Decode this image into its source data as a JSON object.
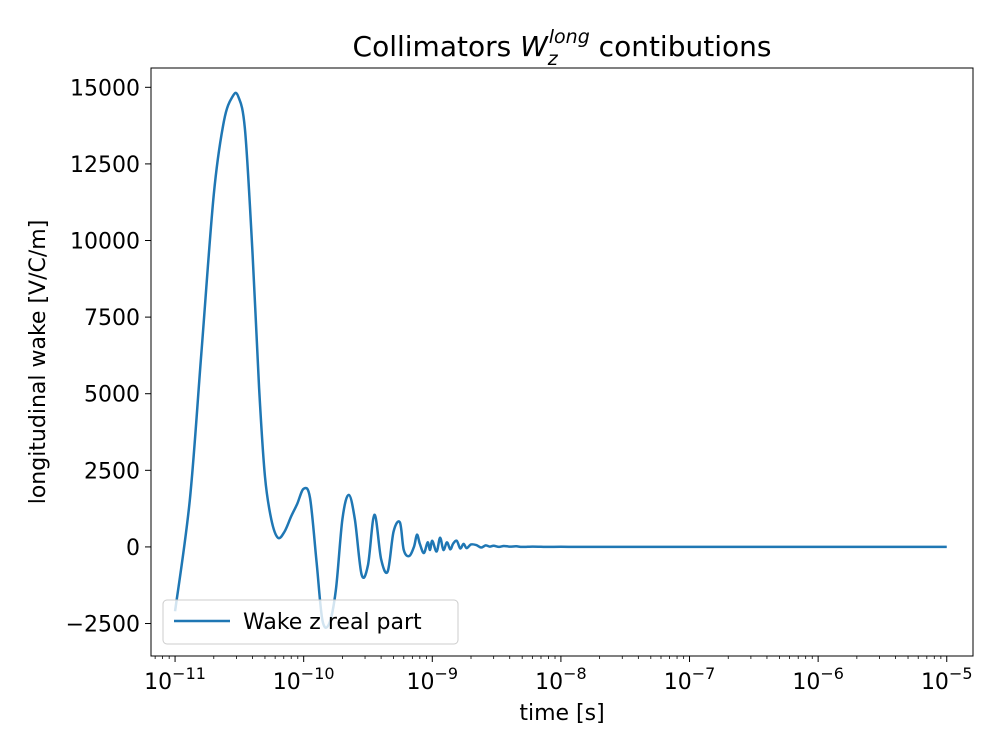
{
  "chart_data": {
    "type": "line",
    "title_main": "Collimators ",
    "title_symbol": "W",
    "title_sub": "z",
    "title_sup": "long",
    "title_rest": " contibutions",
    "xlabel": "time [s]",
    "ylabel": "longitudinal wake [V/C/m]",
    "x_scale": "log",
    "xlim": [
      6.5e-12,
      1.6e-05
    ],
    "ylim": [
      -3560,
      15630
    ],
    "grid": false,
    "legend_position": "lower-left",
    "x_tick_exponents": [
      "−11",
      "−10",
      "−9",
      "−8",
      "−7",
      "−6",
      "−5"
    ],
    "x_tick_values": [
      1e-11,
      1e-10,
      1e-09,
      1e-08,
      1e-07,
      1e-06,
      1e-05
    ],
    "y_ticks": [
      -2500,
      0,
      2500,
      5000,
      7500,
      10000,
      12500,
      15000
    ],
    "y_tick_labels": [
      "−2500",
      "0",
      "2500",
      "5000",
      "7500",
      "10000",
      "12500",
      "15000"
    ],
    "series": [
      {
        "name": "Wake z real part",
        "color": "#1f77b4",
        "x": [
          1e-11,
          1.3e-11,
          1.6e-11,
          2e-11,
          2.4e-11,
          2.8e-11,
          3.1e-11,
          3.5e-11,
          4e-11,
          4.5e-11,
          5e-11,
          5.6e-11,
          6.3e-11,
          7.1e-11,
          8e-11,
          8.9e-11,
          1e-10,
          1.12e-10,
          1.26e-10,
          1.4e-10,
          1.58e-10,
          1.78e-10,
          2e-10,
          2.24e-10,
          2.5e-10,
          2.82e-10,
          3.16e-10,
          3.55e-10,
          4e-10,
          4.5e-10,
          5e-10,
          5.6e-10,
          6e-10,
          6.6e-10,
          7.2e-10,
          7.6e-10,
          8e-10,
          8.6e-10,
          9.2e-10,
          9.6e-10,
          1e-09,
          1.08e-09,
          1.15e-09,
          1.22e-09,
          1.3e-09,
          1.38e-09,
          1.45e-09,
          1.55e-09,
          1.65e-09,
          1.75e-09,
          1.85e-09,
          2e-09,
          2.2e-09,
          2.4e-09,
          2.6e-09,
          2.8e-09,
          3e-09,
          3.3e-09,
          3.6e-09,
          4e-09,
          4.5e-09,
          5e-09,
          6e-09,
          7e-09,
          8e-09,
          1e-08,
          1.3e-08,
          1.6e-08,
          2e-08,
          2.5e-08,
          3e-08,
          5e-08,
          1e-07,
          1e-06,
          1e-05
        ],
        "values": [
          -2100,
          1500,
          6300,
          11500,
          13900,
          14700,
          14700,
          13600,
          9600,
          5200,
          2300,
          900,
          300,
          500,
          1000,
          1400,
          1900,
          1600,
          -500,
          -2400,
          -2500,
          -1400,
          900,
          1700,
          900,
          -900,
          -600,
          1050,
          -400,
          -800,
          500,
          800,
          -100,
          -300,
          0,
          400,
          100,
          -200,
          150,
          -100,
          200,
          -150,
          300,
          -100,
          150,
          -80,
          100,
          200,
          -50,
          100,
          -40,
          80,
          60,
          -20,
          50,
          10,
          40,
          0,
          30,
          10,
          20,
          0,
          10,
          5,
          0,
          5,
          0,
          3,
          0,
          3,
          0,
          0,
          0,
          0,
          0
        ]
      }
    ]
  }
}
